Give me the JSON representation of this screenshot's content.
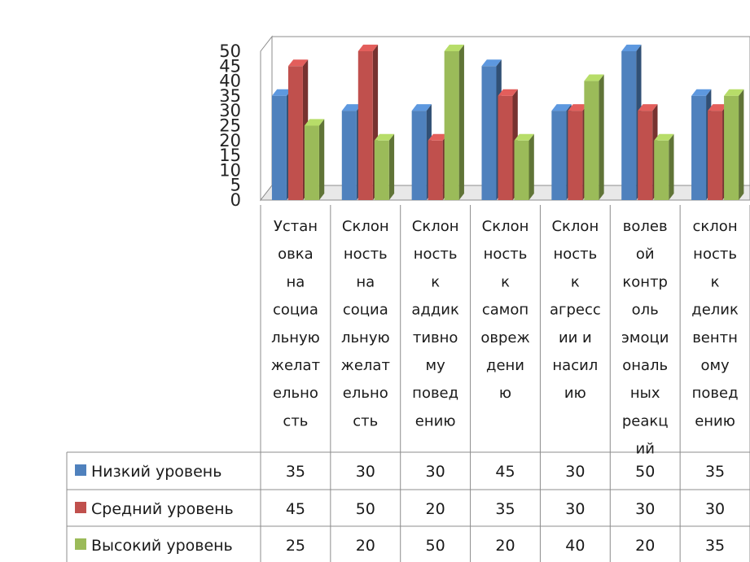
{
  "chart_data": {
    "type": "bar",
    "title": "",
    "xlabel": "",
    "ylabel": "",
    "ylim": [
      0,
      50
    ],
    "yticks": [
      0,
      5,
      10,
      15,
      20,
      25,
      30,
      35,
      40,
      45,
      50
    ],
    "grid": false,
    "legend": "data-table",
    "style": "3d-clustered-column",
    "categories": [
      [
        "Устан",
        "овка",
        "на",
        "социа",
        "льную",
        "желат",
        "ельно",
        "сть"
      ],
      [
        "Склон",
        "ность",
        "на",
        "социа",
        "льную",
        "желат",
        "ельно",
        "сть"
      ],
      [
        "Склон",
        "ность",
        "к",
        "аддик",
        "тивно",
        "му",
        "повед",
        "ению"
      ],
      [
        "Склон",
        "ность",
        "к",
        "самоп",
        "овреж",
        "дени",
        "ю"
      ],
      [
        "Склон",
        "ность",
        "к",
        "агресс",
        "ии и",
        "насил",
        "ию"
      ],
      [
        "волев",
        "ой",
        "контр",
        "оль",
        "эмоци",
        "ональ",
        "ных",
        "реакц",
        "ий"
      ],
      [
        "склон",
        "ность",
        "к",
        "делик",
        "вентн",
        "ому",
        "повед",
        "ению"
      ]
    ],
    "series": [
      {
        "name": "Низкий уровень",
        "color": "#4f81bd",
        "values": [
          35,
          30,
          30,
          45,
          30,
          50,
          35
        ]
      },
      {
        "name": "Средний уровень",
        "color": "#c0504d",
        "values": [
          45,
          50,
          20,
          35,
          30,
          30,
          30
        ]
      },
      {
        "name": "Высокий уровень",
        "color": "#9bbb59",
        "values": [
          25,
          20,
          50,
          20,
          40,
          20,
          35
        ]
      }
    ]
  }
}
